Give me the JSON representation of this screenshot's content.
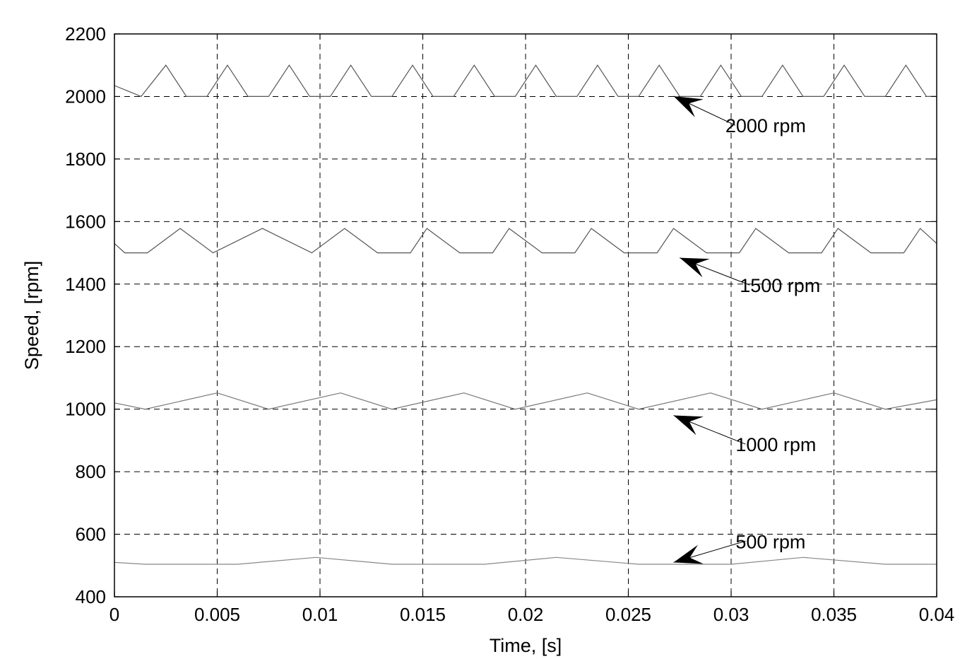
{
  "chart_data": {
    "type": "line",
    "title": "",
    "xlabel": "Time, [s]",
    "ylabel": "Speed, [rpm]",
    "xlim": [
      0,
      0.04
    ],
    "ylim": [
      400,
      2200
    ],
    "grid": true,
    "x_ticks": [
      0,
      0.005,
      0.01,
      0.015,
      0.02,
      0.025,
      0.03,
      0.035,
      0.04
    ],
    "x_tick_labels": [
      "0",
      "0.005",
      "0.01",
      "0.015",
      "0.02",
      "0.025",
      "0.03",
      "0.035",
      "0.04"
    ],
    "y_ticks": [
      400,
      600,
      800,
      1000,
      1200,
      1400,
      1600,
      1800,
      2000,
      2200
    ],
    "y_tick_labels": [
      "400",
      "600",
      "800",
      "1000",
      "1200",
      "1400",
      "1600",
      "1800",
      "2000",
      "2200"
    ],
    "series": [
      {
        "name": "2000 rpm",
        "color": "#555555",
        "x": [
          0,
          0.0013,
          0.0025,
          0.0035,
          0.0045,
          0.0055,
          0.0065,
          0.0075,
          0.0085,
          0.0095,
          0.0105,
          0.0115,
          0.0125,
          0.0135,
          0.0145,
          0.0155,
          0.0165,
          0.0175,
          0.0185,
          0.0195,
          0.0205,
          0.0215,
          0.0225,
          0.0235,
          0.0245,
          0.0255,
          0.0265,
          0.0275,
          0.0285,
          0.0295,
          0.0305,
          0.0315,
          0.0325,
          0.0335,
          0.0345,
          0.0355,
          0.0365,
          0.0375,
          0.0385,
          0.0395,
          0.04
        ],
        "y": [
          2035,
          2000,
          2100,
          2000,
          2000,
          2100,
          2000,
          2000,
          2100,
          2000,
          2000,
          2100,
          2000,
          2000,
          2100,
          2000,
          2000,
          2100,
          2000,
          2000,
          2100,
          2000,
          2000,
          2100,
          2000,
          2000,
          2100,
          2000,
          2000,
          2100,
          2000,
          2000,
          2100,
          2000,
          2000,
          2100,
          2000,
          2000,
          2100,
          2000,
          2000
        ]
      },
      {
        "name": "1500 rpm",
        "color": "#555555",
        "x": [
          0,
          0.0005,
          0.0016,
          0.0032,
          0.0048,
          0.0072,
          0.0096,
          0.0112,
          0.0128,
          0.0144,
          0.0152,
          0.0168,
          0.0184,
          0.0192,
          0.0208,
          0.0224,
          0.0232,
          0.0248,
          0.0264,
          0.0272,
          0.0288,
          0.0304,
          0.0312,
          0.0328,
          0.0344,
          0.0352,
          0.0368,
          0.0384,
          0.0392,
          0.04
        ],
        "y": [
          1530,
          1500,
          1500,
          1578,
          1500,
          1578,
          1500,
          1578,
          1500,
          1500,
          1578,
          1500,
          1500,
          1578,
          1500,
          1500,
          1578,
          1500,
          1500,
          1578,
          1500,
          1500,
          1578,
          1500,
          1500,
          1578,
          1500,
          1500,
          1578,
          1530
        ]
      },
      {
        "name": "1000 rpm",
        "color": "#777777",
        "x": [
          0,
          0.0015,
          0.005,
          0.0075,
          0.011,
          0.0135,
          0.017,
          0.0195,
          0.023,
          0.0255,
          0.029,
          0.0315,
          0.035,
          0.0375,
          0.04
        ],
        "y": [
          1020,
          1000,
          1052,
          1000,
          1052,
          1000,
          1052,
          1000,
          1052,
          1000,
          1052,
          1000,
          1052,
          1000,
          1030
        ]
      },
      {
        "name": "500 rpm",
        "color": "#888888",
        "x": [
          0,
          0.0015,
          0.006,
          0.0098,
          0.0135,
          0.018,
          0.0215,
          0.0255,
          0.03,
          0.0335,
          0.0375,
          0.04
        ],
        "y": [
          510,
          504,
          504,
          526,
          504,
          504,
          526,
          504,
          504,
          526,
          504,
          504
        ]
      }
    ],
    "annotations": [
      {
        "text": "2000 rpm",
        "arrow_from": [
          0.0302,
          1908
        ],
        "arrow_to": [
          0.0272,
          2001
        ]
      },
      {
        "text": "1500 rpm",
        "arrow_from": [
          0.0309,
          1397
        ],
        "arrow_to": [
          0.0275,
          1484
        ]
      },
      {
        "text": "1000 rpm",
        "arrow_from": [
          0.0307,
          888
        ],
        "arrow_to": [
          0.0272,
          980
        ]
      },
      {
        "text": "500 rpm",
        "arrow_from": [
          0.0307,
          578
        ],
        "arrow_to": [
          0.0272,
          510
        ]
      }
    ]
  }
}
